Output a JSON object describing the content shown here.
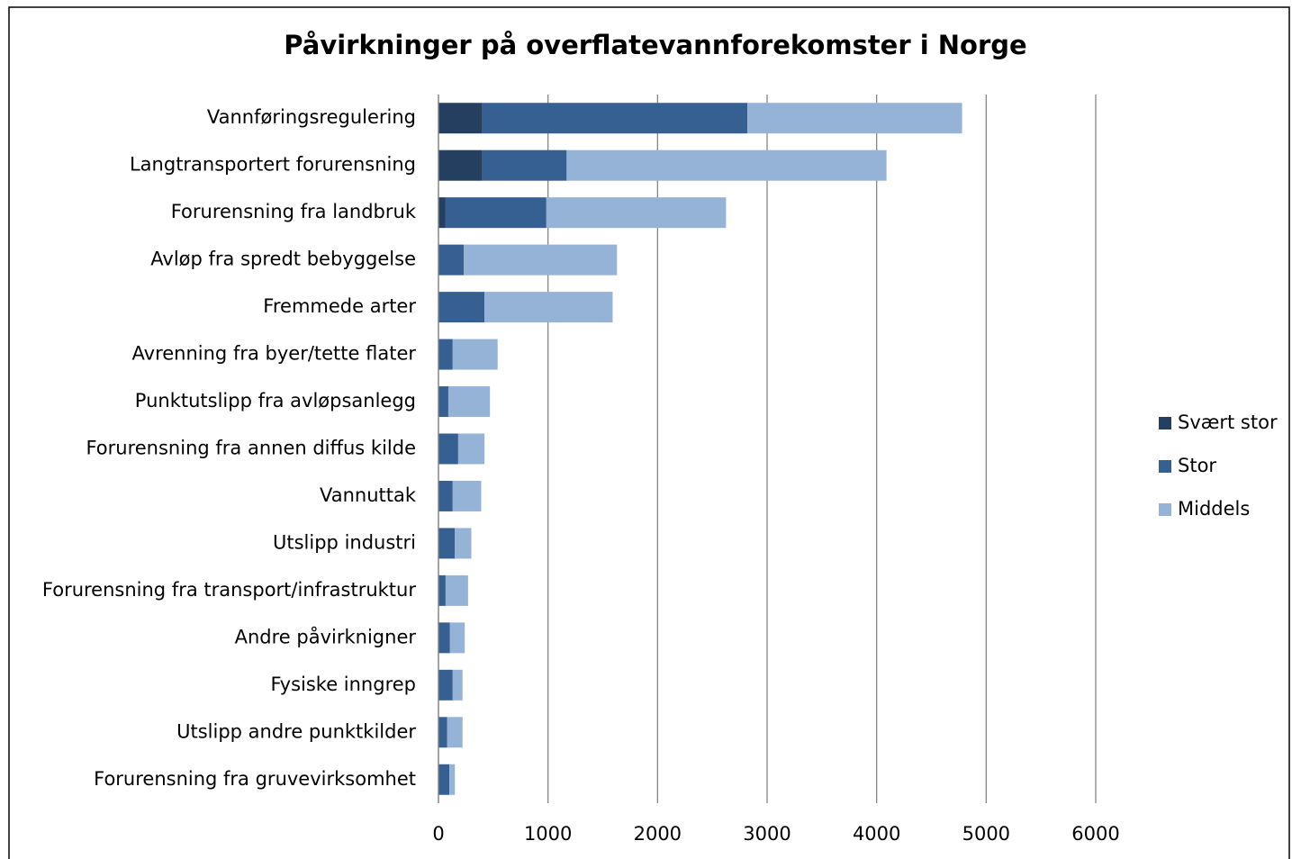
{
  "chart_data": {
    "type": "stacked-bar-horizontal",
    "title": "Påvirkninger på overflatevannforekomster i Norge",
    "categories": [
      "Vannføringsregulering",
      "Langtransportert forurensning",
      "Forurensning fra landbruk",
      "Avløp fra spredt bebyggelse",
      "Fremmede arter",
      "Avrenning fra byer/tette flater",
      "Punktutslipp fra avløpsanlegg",
      "Forurensning fra annen diffus kilde",
      "Vannuttak",
      "Utslipp industri",
      "Forurensning fra transport/infrastruktur",
      "Andre påvirknigner",
      "Fysiske inngrep",
      "Utslipp andre punktkilder",
      "Forurensning fra gruvevirksomhet"
    ],
    "series": [
      {
        "name": "Svært stor",
        "color": "#243f60",
        "values": [
          400,
          400,
          65,
          0,
          0,
          0,
          0,
          0,
          0,
          0,
          0,
          0,
          0,
          0,
          0
        ]
      },
      {
        "name": "Stor",
        "color": "#376092",
        "values": [
          2420,
          770,
          920,
          230,
          420,
          130,
          90,
          180,
          130,
          150,
          65,
          105,
          130,
          80,
          100
        ]
      },
      {
        "name": "Middels",
        "color": "#95b3d7",
        "values": [
          1960,
          2920,
          1640,
          1400,
          1170,
          410,
          380,
          240,
          260,
          150,
          205,
          135,
          90,
          140,
          50
        ]
      }
    ],
    "xlim": [
      0,
      6000
    ],
    "xticks": [
      0,
      1000,
      2000,
      3000,
      4000,
      5000,
      6000
    ],
    "grid": true,
    "legend": "right"
  }
}
